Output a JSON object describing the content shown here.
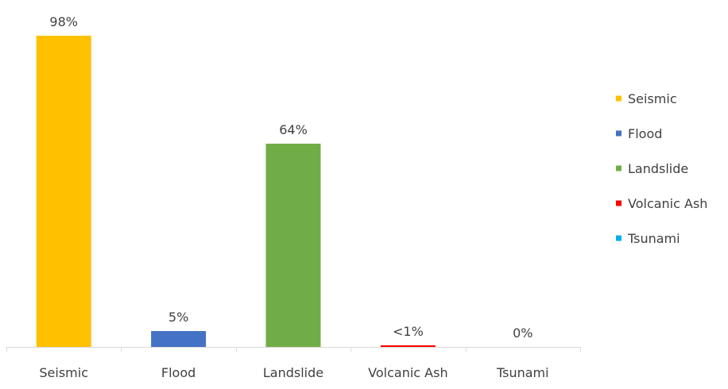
{
  "chart_data": {
    "type": "bar",
    "categories": [
      "Seismic",
      "Flood",
      "Landslide",
      "Volcanic Ash",
      "Tsunami"
    ],
    "values": [
      98,
      5,
      64,
      0.5,
      0
    ],
    "data_labels": [
      "98%",
      "5%",
      "64%",
      "<1%",
      "0%"
    ],
    "colors": [
      "#FFC000",
      "#4472C4",
      "#70AD47",
      "#FF0000",
      "#00B0F0"
    ],
    "legend": {
      "position": "right",
      "entries": [
        "Seismic",
        "Flood",
        "Landslide",
        "Volcanic Ash",
        "Tsunami"
      ]
    },
    "ylim": [
      0,
      100
    ],
    "grid": false,
    "y_axis_visible": false
  }
}
